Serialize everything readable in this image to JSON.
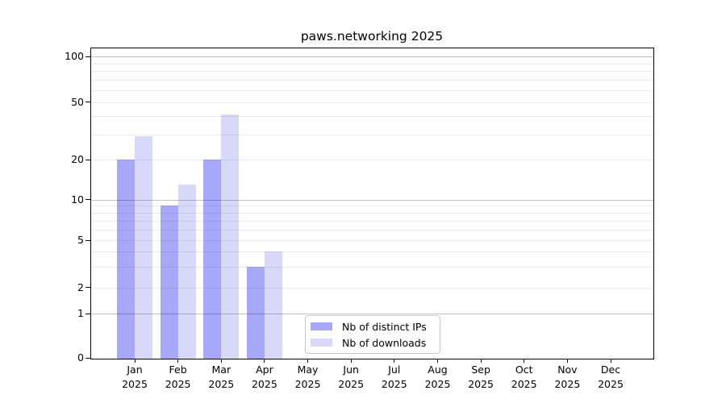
{
  "title": "paws.networking 2025",
  "chart_data": {
    "type": "bar",
    "title": "paws.networking 2025",
    "categories": [
      "Jan 2025",
      "Feb 2025",
      "Mar 2025",
      "Apr 2025",
      "May 2025",
      "Jun 2025",
      "Jul 2025",
      "Aug 2025",
      "Sep 2025",
      "Oct 2025",
      "Nov 2025",
      "Dec 2025"
    ],
    "series": [
      {
        "name": "Nb of distinct IPs",
        "color": "#a8a8f8",
        "values": [
          20,
          9,
          20,
          3,
          0,
          0,
          0,
          0,
          0,
          0,
          0,
          0
        ]
      },
      {
        "name": "Nb of downloads",
        "color": "#d8d8f8",
        "values": [
          29,
          13,
          41,
          4,
          0,
          0,
          0,
          0,
          0,
          0,
          0,
          0
        ]
      }
    ],
    "xlabel": "",
    "ylabel": "",
    "yscale": "symlog",
    "ylim": [
      0,
      120
    ],
    "ytick_labels": [
      "100",
      "50",
      "20",
      "10",
      "5",
      "2",
      "1",
      "0"
    ],
    "yticks": [
      100,
      50,
      20,
      10,
      5,
      2,
      1,
      0
    ],
    "minor_grid_values": [
      2,
      3,
      4,
      5,
      6,
      7,
      8,
      9,
      20,
      30,
      40,
      50,
      60,
      70,
      80,
      90
    ],
    "major_grid_values": [
      1,
      10,
      100
    ],
    "grid": true,
    "legend_position": "inside lower-center"
  }
}
